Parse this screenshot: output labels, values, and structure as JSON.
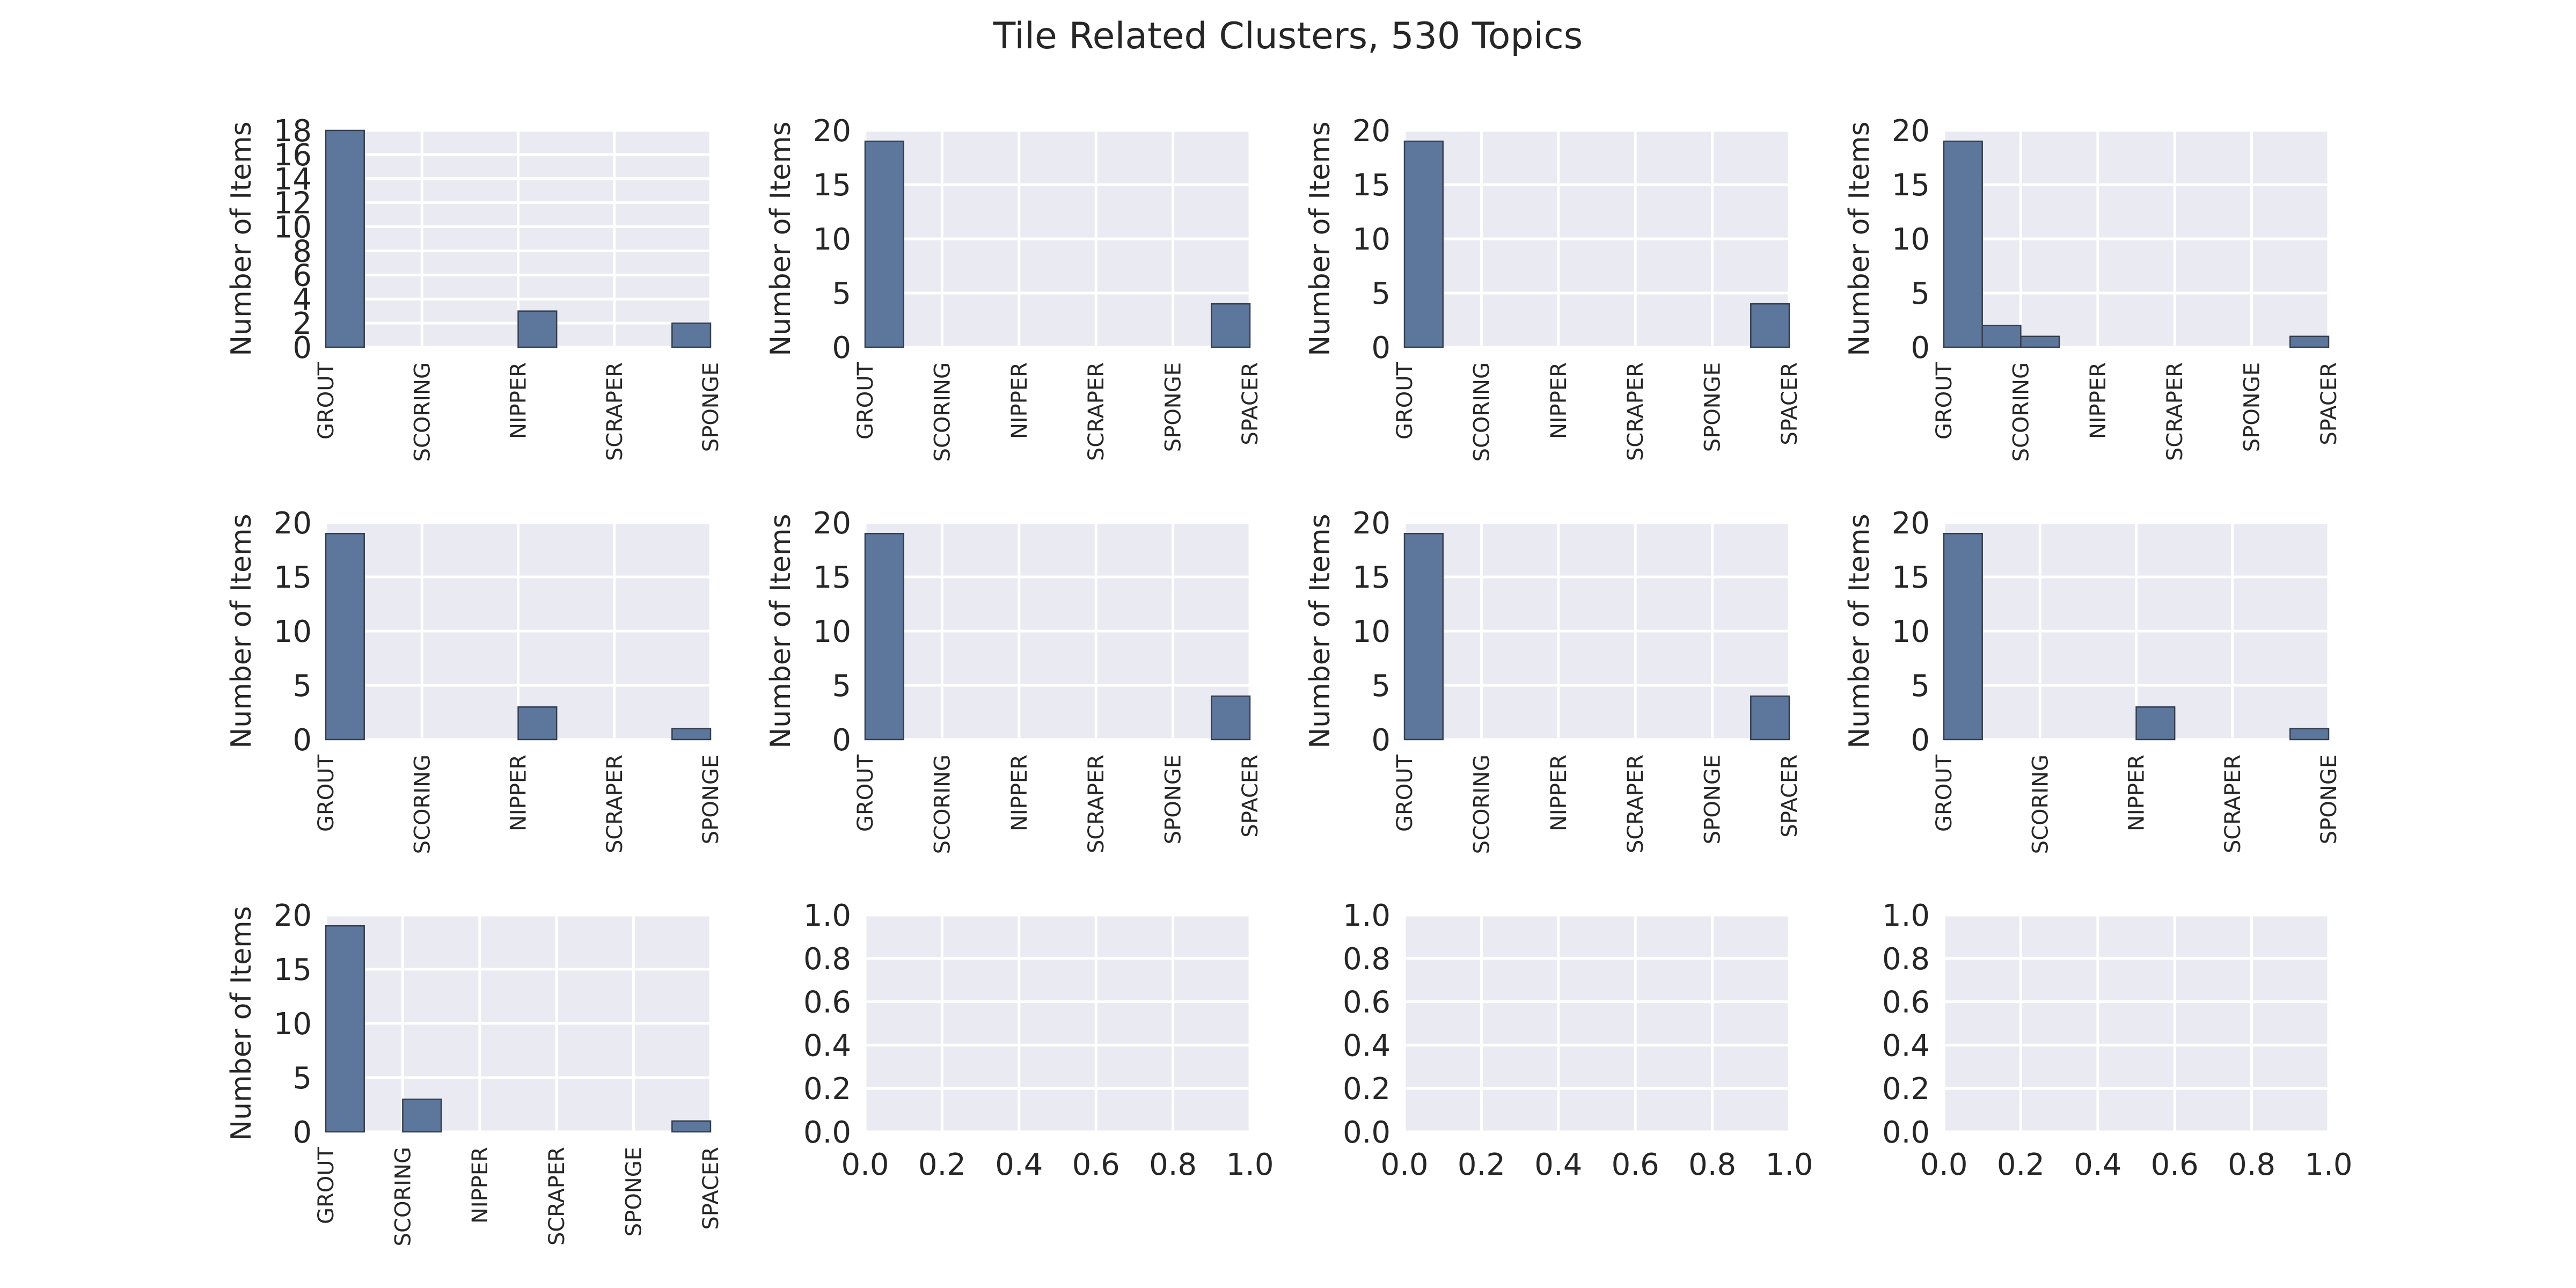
{
  "figure": {
    "title": "Tile Related Clusters, 530 Topics"
  },
  "style": {
    "plot_background": "#eaeaf2",
    "grid_color": "#ffffff",
    "bar_color": "#5d769c",
    "bar_edge": "#333e50",
    "text_color": "#262626"
  },
  "chart_data": [
    {
      "type": "bar",
      "ylabel": "Number of Items",
      "ylim": [
        0,
        18
      ],
      "yticks": [
        0,
        2,
        4,
        6,
        8,
        10,
        12,
        14,
        16,
        18
      ],
      "xlim": [
        0,
        1
      ],
      "xtick_positions": [
        0,
        0.25,
        0.5,
        0.75,
        1
      ],
      "xtick_labels": [
        "GROUT",
        "SCORING",
        "NIPPER",
        "SCRAPER",
        "SPONGE"
      ],
      "grid": true,
      "bins": [
        {
          "x0": 0,
          "x1": 0.1,
          "value": 18
        },
        {
          "x0": 0.1,
          "x1": 0.2,
          "value": 0
        },
        {
          "x0": 0.2,
          "x1": 0.3,
          "value": 0
        },
        {
          "x0": 0.3,
          "x1": 0.4,
          "value": 0
        },
        {
          "x0": 0.4,
          "x1": 0.5,
          "value": 0
        },
        {
          "x0": 0.5,
          "x1": 0.6,
          "value": 3
        },
        {
          "x0": 0.6,
          "x1": 0.7,
          "value": 0
        },
        {
          "x0": 0.7,
          "x1": 0.8,
          "value": 0
        },
        {
          "x0": 0.8,
          "x1": 0.9,
          "value": 0
        },
        {
          "x0": 0.9,
          "x1": 1.0,
          "value": 2
        }
      ]
    },
    {
      "type": "bar",
      "ylabel": "Number of Items",
      "ylim": [
        0,
        20
      ],
      "yticks": [
        0,
        5,
        10,
        15,
        20
      ],
      "xlim": [
        0,
        1
      ],
      "xtick_positions": [
        0,
        0.2,
        0.4,
        0.6,
        0.8,
        1
      ],
      "xtick_labels": [
        "GROUT",
        "SCORING",
        "NIPPER",
        "SCRAPER",
        "SPONGE",
        "SPACER"
      ],
      "grid": true,
      "bins": [
        {
          "x0": 0,
          "x1": 0.1,
          "value": 19
        },
        {
          "x0": 0.1,
          "x1": 0.2,
          "value": 0
        },
        {
          "x0": 0.2,
          "x1": 0.3,
          "value": 0
        },
        {
          "x0": 0.3,
          "x1": 0.4,
          "value": 0
        },
        {
          "x0": 0.4,
          "x1": 0.5,
          "value": 0
        },
        {
          "x0": 0.5,
          "x1": 0.6,
          "value": 0
        },
        {
          "x0": 0.6,
          "x1": 0.7,
          "value": 0
        },
        {
          "x0": 0.7,
          "x1": 0.8,
          "value": 0
        },
        {
          "x0": 0.8,
          "x1": 0.9,
          "value": 0
        },
        {
          "x0": 0.9,
          "x1": 1.0,
          "value": 4
        }
      ]
    },
    {
      "type": "bar",
      "ylabel": "Number of Items",
      "ylim": [
        0,
        20
      ],
      "yticks": [
        0,
        5,
        10,
        15,
        20
      ],
      "xlim": [
        0,
        1
      ],
      "xtick_positions": [
        0,
        0.2,
        0.4,
        0.6,
        0.8,
        1
      ],
      "xtick_labels": [
        "GROUT",
        "SCORING",
        "NIPPER",
        "SCRAPER",
        "SPONGE",
        "SPACER"
      ],
      "grid": true,
      "bins": [
        {
          "x0": 0,
          "x1": 0.1,
          "value": 19
        },
        {
          "x0": 0.1,
          "x1": 0.2,
          "value": 0
        },
        {
          "x0": 0.2,
          "x1": 0.3,
          "value": 0
        },
        {
          "x0": 0.3,
          "x1": 0.4,
          "value": 0
        },
        {
          "x0": 0.4,
          "x1": 0.5,
          "value": 0
        },
        {
          "x0": 0.5,
          "x1": 0.6,
          "value": 0
        },
        {
          "x0": 0.6,
          "x1": 0.7,
          "value": 0
        },
        {
          "x0": 0.7,
          "x1": 0.8,
          "value": 0
        },
        {
          "x0": 0.8,
          "x1": 0.9,
          "value": 0
        },
        {
          "x0": 0.9,
          "x1": 1.0,
          "value": 4
        }
      ]
    },
    {
      "type": "bar",
      "ylabel": "Number of Items",
      "ylim": [
        0,
        20
      ],
      "yticks": [
        0,
        5,
        10,
        15,
        20
      ],
      "xlim": [
        0,
        1
      ],
      "xtick_positions": [
        0,
        0.2,
        0.4,
        0.6,
        0.8,
        1
      ],
      "xtick_labels": [
        "GROUT",
        "SCORING",
        "NIPPER",
        "SCRAPER",
        "SPONGE",
        "SPACER"
      ],
      "grid": true,
      "bins": [
        {
          "x0": 0,
          "x1": 0.1,
          "value": 19
        },
        {
          "x0": 0.1,
          "x1": 0.2,
          "value": 2
        },
        {
          "x0": 0.2,
          "x1": 0.3,
          "value": 1
        },
        {
          "x0": 0.3,
          "x1": 0.4,
          "value": 0
        },
        {
          "x0": 0.4,
          "x1": 0.5,
          "value": 0
        },
        {
          "x0": 0.5,
          "x1": 0.6,
          "value": 0
        },
        {
          "x0": 0.6,
          "x1": 0.7,
          "value": 0
        },
        {
          "x0": 0.7,
          "x1": 0.8,
          "value": 0
        },
        {
          "x0": 0.8,
          "x1": 0.9,
          "value": 0
        },
        {
          "x0": 0.9,
          "x1": 1.0,
          "value": 1
        }
      ]
    },
    {
      "type": "bar",
      "ylabel": "Number of Items",
      "ylim": [
        0,
        20
      ],
      "yticks": [
        0,
        5,
        10,
        15,
        20
      ],
      "xlim": [
        0,
        1
      ],
      "xtick_positions": [
        0,
        0.25,
        0.5,
        0.75,
        1
      ],
      "xtick_labels": [
        "GROUT",
        "SCORING",
        "NIPPER",
        "SCRAPER",
        "SPONGE"
      ],
      "grid": true,
      "bins": [
        {
          "x0": 0,
          "x1": 0.1,
          "value": 19
        },
        {
          "x0": 0.1,
          "x1": 0.2,
          "value": 0
        },
        {
          "x0": 0.2,
          "x1": 0.3,
          "value": 0
        },
        {
          "x0": 0.3,
          "x1": 0.4,
          "value": 0
        },
        {
          "x0": 0.4,
          "x1": 0.5,
          "value": 0
        },
        {
          "x0": 0.5,
          "x1": 0.6,
          "value": 3
        },
        {
          "x0": 0.6,
          "x1": 0.7,
          "value": 0
        },
        {
          "x0": 0.7,
          "x1": 0.8,
          "value": 0
        },
        {
          "x0": 0.8,
          "x1": 0.9,
          "value": 0
        },
        {
          "x0": 0.9,
          "x1": 1.0,
          "value": 1
        }
      ]
    },
    {
      "type": "bar",
      "ylabel": "Number of Items",
      "ylim": [
        0,
        20
      ],
      "yticks": [
        0,
        5,
        10,
        15,
        20
      ],
      "xlim": [
        0,
        1
      ],
      "xtick_positions": [
        0,
        0.2,
        0.4,
        0.6,
        0.8,
        1
      ],
      "xtick_labels": [
        "GROUT",
        "SCORING",
        "NIPPER",
        "SCRAPER",
        "SPONGE",
        "SPACER"
      ],
      "grid": true,
      "bins": [
        {
          "x0": 0,
          "x1": 0.1,
          "value": 19
        },
        {
          "x0": 0.1,
          "x1": 0.2,
          "value": 0
        },
        {
          "x0": 0.2,
          "x1": 0.3,
          "value": 0
        },
        {
          "x0": 0.3,
          "x1": 0.4,
          "value": 0
        },
        {
          "x0": 0.4,
          "x1": 0.5,
          "value": 0
        },
        {
          "x0": 0.5,
          "x1": 0.6,
          "value": 0
        },
        {
          "x0": 0.6,
          "x1": 0.7,
          "value": 0
        },
        {
          "x0": 0.7,
          "x1": 0.8,
          "value": 0
        },
        {
          "x0": 0.8,
          "x1": 0.9,
          "value": 0
        },
        {
          "x0": 0.9,
          "x1": 1.0,
          "value": 4
        }
      ]
    },
    {
      "type": "bar",
      "ylabel": "Number of Items",
      "ylim": [
        0,
        20
      ],
      "yticks": [
        0,
        5,
        10,
        15,
        20
      ],
      "xlim": [
        0,
        1
      ],
      "xtick_positions": [
        0,
        0.2,
        0.4,
        0.6,
        0.8,
        1
      ],
      "xtick_labels": [
        "GROUT",
        "SCORING",
        "NIPPER",
        "SCRAPER",
        "SPONGE",
        "SPACER"
      ],
      "grid": true,
      "bins": [
        {
          "x0": 0,
          "x1": 0.1,
          "value": 19
        },
        {
          "x0": 0.1,
          "x1": 0.2,
          "value": 0
        },
        {
          "x0": 0.2,
          "x1": 0.3,
          "value": 0
        },
        {
          "x0": 0.3,
          "x1": 0.4,
          "value": 0
        },
        {
          "x0": 0.4,
          "x1": 0.5,
          "value": 0
        },
        {
          "x0": 0.5,
          "x1": 0.6,
          "value": 0
        },
        {
          "x0": 0.6,
          "x1": 0.7,
          "value": 0
        },
        {
          "x0": 0.7,
          "x1": 0.8,
          "value": 0
        },
        {
          "x0": 0.8,
          "x1": 0.9,
          "value": 0
        },
        {
          "x0": 0.9,
          "x1": 1.0,
          "value": 4
        }
      ]
    },
    {
      "type": "bar",
      "ylabel": "Number of Items",
      "ylim": [
        0,
        20
      ],
      "yticks": [
        0,
        5,
        10,
        15,
        20
      ],
      "xlim": [
        0,
        1
      ],
      "xtick_positions": [
        0,
        0.25,
        0.5,
        0.75,
        1
      ],
      "xtick_labels": [
        "GROUT",
        "SCORING",
        "NIPPER",
        "SCRAPER",
        "SPONGE"
      ],
      "grid": true,
      "bins": [
        {
          "x0": 0,
          "x1": 0.1,
          "value": 19
        },
        {
          "x0": 0.1,
          "x1": 0.2,
          "value": 0
        },
        {
          "x0": 0.2,
          "x1": 0.3,
          "value": 0
        },
        {
          "x0": 0.3,
          "x1": 0.4,
          "value": 0
        },
        {
          "x0": 0.4,
          "x1": 0.5,
          "value": 0
        },
        {
          "x0": 0.5,
          "x1": 0.6,
          "value": 3
        },
        {
          "x0": 0.6,
          "x1": 0.7,
          "value": 0
        },
        {
          "x0": 0.7,
          "x1": 0.8,
          "value": 0
        },
        {
          "x0": 0.8,
          "x1": 0.9,
          "value": 0
        },
        {
          "x0": 0.9,
          "x1": 1.0,
          "value": 1
        }
      ]
    },
    {
      "type": "bar",
      "ylabel": "Number of Items",
      "ylim": [
        0,
        20
      ],
      "yticks": [
        0,
        5,
        10,
        15,
        20
      ],
      "xlim": [
        0,
        1
      ],
      "xtick_positions": [
        0,
        0.2,
        0.4,
        0.6,
        0.8,
        1
      ],
      "xtick_labels": [
        "GROUT",
        "SCORING",
        "NIPPER",
        "SCRAPER",
        "SPONGE",
        "SPACER"
      ],
      "grid": true,
      "bins": [
        {
          "x0": 0,
          "x1": 0.1,
          "value": 19
        },
        {
          "x0": 0.1,
          "x1": 0.2,
          "value": 0
        },
        {
          "x0": 0.2,
          "x1": 0.3,
          "value": 3
        },
        {
          "x0": 0.3,
          "x1": 0.4,
          "value": 0
        },
        {
          "x0": 0.4,
          "x1": 0.5,
          "value": 0
        },
        {
          "x0": 0.5,
          "x1": 0.6,
          "value": 0
        },
        {
          "x0": 0.6,
          "x1": 0.7,
          "value": 0
        },
        {
          "x0": 0.7,
          "x1": 0.8,
          "value": 0
        },
        {
          "x0": 0.8,
          "x1": 0.9,
          "value": 0
        },
        {
          "x0": 0.9,
          "x1": 1.0,
          "value": 1
        }
      ]
    },
    {
      "type": "empty",
      "ylabel": "",
      "ylim": [
        0,
        1
      ],
      "yticks": [
        0.0,
        0.2,
        0.4,
        0.6,
        0.8,
        1.0
      ],
      "xlim": [
        0,
        1
      ],
      "xtick_positions": [
        0.0,
        0.2,
        0.4,
        0.6,
        0.8,
        1.0
      ],
      "xtick_labels": [
        "0.0",
        "0.2",
        "0.4",
        "0.6",
        "0.8",
        "1.0"
      ],
      "grid": true,
      "bins": []
    },
    {
      "type": "empty",
      "ylabel": "",
      "ylim": [
        0,
        1
      ],
      "yticks": [
        0.0,
        0.2,
        0.4,
        0.6,
        0.8,
        1.0
      ],
      "xlim": [
        0,
        1
      ],
      "xtick_positions": [
        0.0,
        0.2,
        0.4,
        0.6,
        0.8,
        1.0
      ],
      "xtick_labels": [
        "0.0",
        "0.2",
        "0.4",
        "0.6",
        "0.8",
        "1.0"
      ],
      "grid": true,
      "bins": []
    },
    {
      "type": "empty",
      "ylabel": "",
      "ylim": [
        0,
        1
      ],
      "yticks": [
        0.0,
        0.2,
        0.4,
        0.6,
        0.8,
        1.0
      ],
      "xlim": [
        0,
        1
      ],
      "xtick_positions": [
        0.0,
        0.2,
        0.4,
        0.6,
        0.8,
        1.0
      ],
      "xtick_labels": [
        "0.0",
        "0.2",
        "0.4",
        "0.6",
        "0.8",
        "1.0"
      ],
      "grid": true,
      "bins": []
    }
  ]
}
